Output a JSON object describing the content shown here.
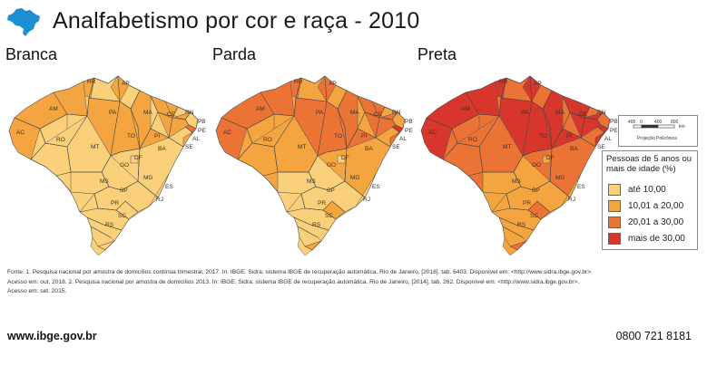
{
  "header": {
    "title": "Analfabetismo por cor e raça - 2010",
    "logo_icon": "brazil-map-icon"
  },
  "panels": [
    {
      "label": "Branca",
      "shade": 0
    },
    {
      "label": "Parda",
      "shade": 1
    },
    {
      "label": "Preta",
      "shade": 2
    }
  ],
  "states": [
    "RR",
    "AP",
    "AM",
    "PA",
    "MA",
    "CE",
    "RN",
    "PB",
    "PE",
    "AL",
    "SE",
    "AC",
    "RO",
    "TO",
    "PI",
    "BA",
    "MT",
    "GO",
    "DF",
    "MG",
    "ES",
    "MS",
    "SP",
    "RJ",
    "PR",
    "SC",
    "RS"
  ],
  "scale": {
    "labels": [
      "400",
      "0",
      "400",
      "800",
      "km"
    ],
    "projection": "Projeção Policônica"
  },
  "legend": {
    "title": "Pessoas de 5 anos ou mais de idade (%)",
    "items": [
      {
        "label": "até 10,00",
        "color": "#fbd07a"
      },
      {
        "label": "10,01 a 20,00",
        "color": "#f5a53f"
      },
      {
        "label": "20,01 a 30,00",
        "color": "#ec7336"
      },
      {
        "label": "mais de 30,00",
        "color": "#d8362c"
      }
    ]
  },
  "footer": {
    "source_line1": "Fonte: 1. Pesquisa nacional por amostra de domicílios contínua trimestral, 2017. In: IBGE. Sidra: sistema IBGE de recuperação automática. Rio de Janeiro, [2018]. tab. 6403. Disponível em: <http://www.sidra.ibge.gov.br>.",
    "source_line2": "Acesso em: out. 2018. 2. Pesquisa nacional por amostra de domicílios 2013. In: IBGE. Sidra: sistema IBGE de recuperação automática. Rio de Janeiro, [2014]. tab. 262. Disponível em: <http://www.sidra.ibge.gov.br>.",
    "source_line3": "Acesso em: set. 2015.",
    "website": "www.ibge.gov.br",
    "phone": "0800 721 8181"
  }
}
